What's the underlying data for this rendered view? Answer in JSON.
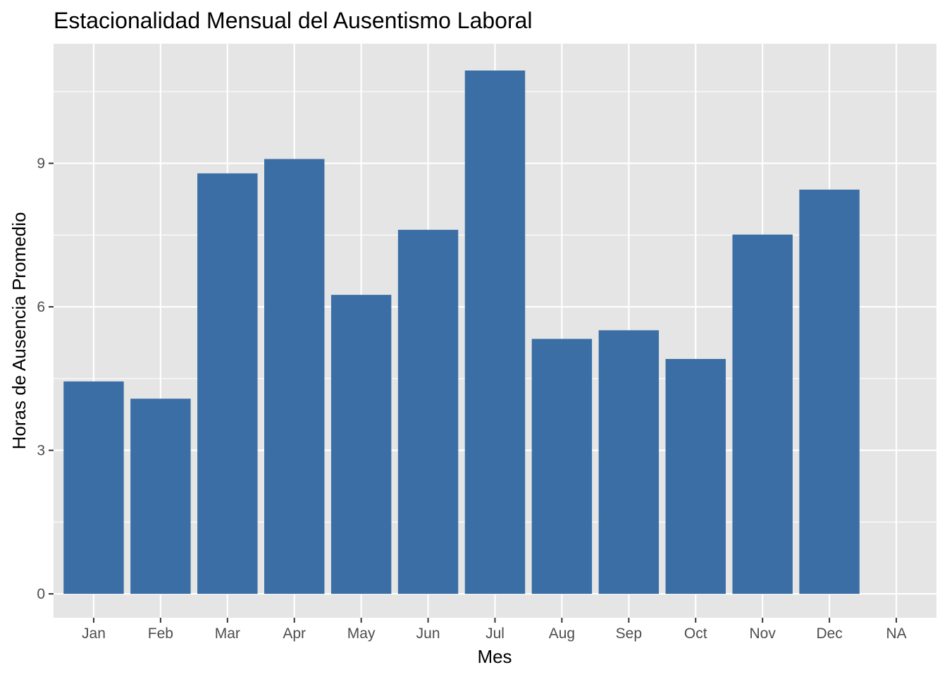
{
  "chart_data": {
    "type": "bar",
    "title": "Estacionalidad Mensual del Ausentismo Laboral",
    "xlabel": "Mes",
    "ylabel": "Horas de Ausencia Promedio",
    "categories": [
      "Jan",
      "Feb",
      "Mar",
      "Apr",
      "May",
      "Jun",
      "Jul",
      "Aug",
      "Sep",
      "Oct",
      "Nov",
      "Dec",
      "NA"
    ],
    "values": [
      4.44,
      4.08,
      8.79,
      9.09,
      6.25,
      7.61,
      10.94,
      5.33,
      5.51,
      4.91,
      7.51,
      8.45,
      null
    ],
    "yticks": [
      0,
      3,
      6,
      9
    ],
    "ylim": [
      -0.5,
      11.5
    ],
    "grid": true,
    "colors": {
      "bar": "#3a6ea5",
      "panel": "#e5e5e5",
      "grid": "#ffffff"
    }
  }
}
